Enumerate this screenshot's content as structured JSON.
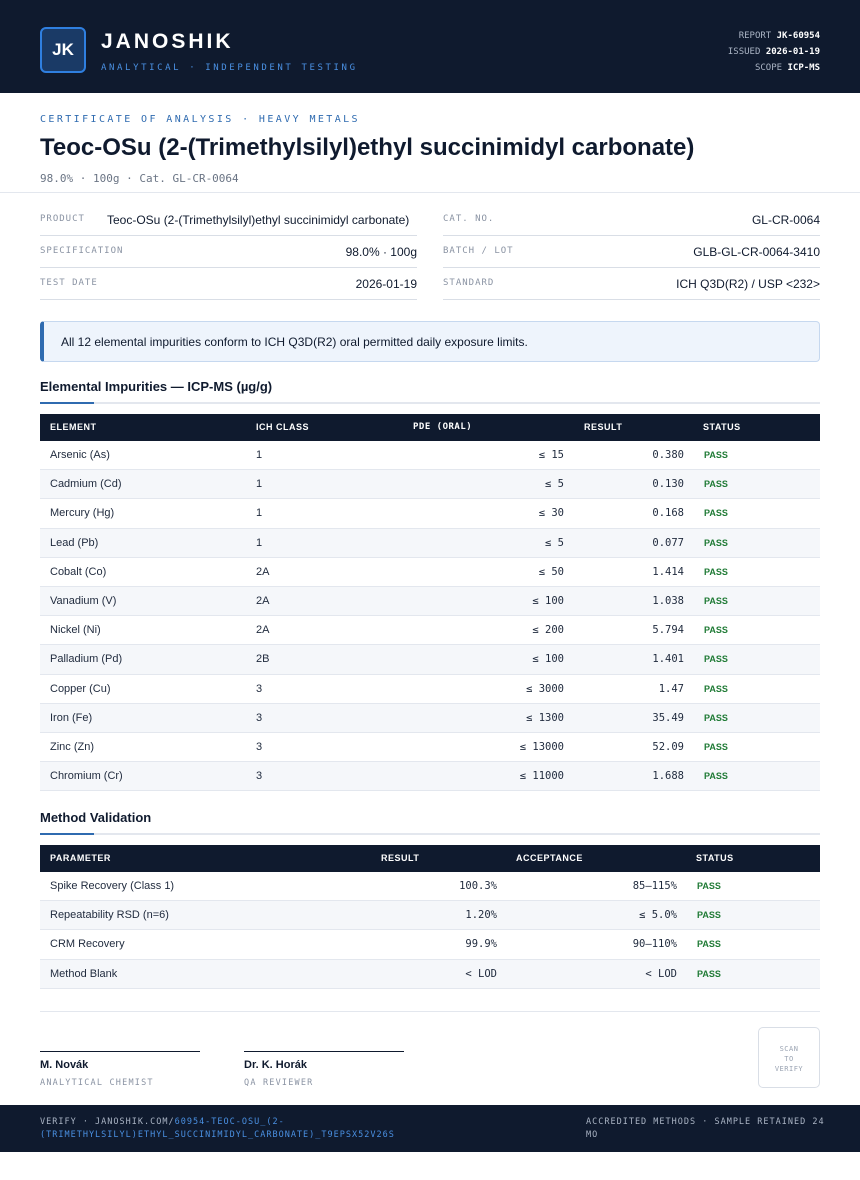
{
  "header": {
    "logo": "JK",
    "brand": "JANOSHIK",
    "tagline": "ANALYTICAL · INDEPENDENT TESTING",
    "report_label": "REPORT",
    "report_value": "JK-60954",
    "issued_label": "ISSUED",
    "issued_value": "2026-01-19",
    "scope_label": "SCOPE",
    "scope_value": "ICP-MS"
  },
  "title_block": {
    "kicker": "CERTIFICATE OF ANALYSIS · HEAVY METALS",
    "title": "Teoc-OSu (2-(Trimethylsilyl)ethyl succinimidyl carbonate)",
    "subline": "98.0% · 100g  ·  Cat. GL-CR-0064"
  },
  "info": {
    "product_label": "PRODUCT",
    "product_value": "Teoc-OSu (2-(Trimethylsilyl)ethyl succinimidyl carbonate)",
    "catno_label": "CAT. NO.",
    "catno_value": "GL-CR-0064",
    "spec_label": "SPECIFICATION",
    "spec_value": "98.0% · 100g",
    "batch_label": "BATCH / LOT",
    "batch_value": "GLB-GL-CR-0064-3410",
    "date_label": "TEST DATE",
    "date_value": "2026-01-19",
    "standard_label": "STANDARD",
    "standard_value": "ICH Q3D(R2) / USP <232>"
  },
  "notice": "All 12 elemental impurities conform to ICH Q3D(R2) oral permitted daily exposure limits.",
  "impurities": {
    "heading": "Elemental Impurities — ICP-MS (µg/g)",
    "columns": [
      "ELEMENT",
      "ICH CLASS",
      "PDE (ORAL)",
      "RESULT",
      "STATUS"
    ],
    "rows": [
      {
        "element": "Arsenic (As)",
        "class": "1",
        "pde": "≤ 15",
        "result": "0.380",
        "status": "PASS"
      },
      {
        "element": "Cadmium (Cd)",
        "class": "1",
        "pde": "≤ 5",
        "result": "0.130",
        "status": "PASS"
      },
      {
        "element": "Mercury (Hg)",
        "class": "1",
        "pde": "≤ 30",
        "result": "0.168",
        "status": "PASS"
      },
      {
        "element": "Lead (Pb)",
        "class": "1",
        "pde": "≤ 5",
        "result": "0.077",
        "status": "PASS"
      },
      {
        "element": "Cobalt (Co)",
        "class": "2A",
        "pde": "≤ 50",
        "result": "1.414",
        "status": "PASS"
      },
      {
        "element": "Vanadium (V)",
        "class": "2A",
        "pde": "≤ 100",
        "result": "1.038",
        "status": "PASS"
      },
      {
        "element": "Nickel (Ni)",
        "class": "2A",
        "pde": "≤ 200",
        "result": "5.794",
        "status": "PASS"
      },
      {
        "element": "Palladium (Pd)",
        "class": "2B",
        "pde": "≤ 100",
        "result": "1.401",
        "status": "PASS"
      },
      {
        "element": "Copper (Cu)",
        "class": "3",
        "pde": "≤ 3000",
        "result": "1.47",
        "status": "PASS"
      },
      {
        "element": "Iron (Fe)",
        "class": "3",
        "pde": "≤ 1300",
        "result": "35.49",
        "status": "PASS"
      },
      {
        "element": "Zinc (Zn)",
        "class": "3",
        "pde": "≤ 13000",
        "result": "52.09",
        "status": "PASS"
      },
      {
        "element": "Chromium (Cr)",
        "class": "3",
        "pde": "≤ 11000",
        "result": "1.688",
        "status": "PASS"
      }
    ]
  },
  "validation": {
    "heading": "Method Validation",
    "columns": [
      "PARAMETER",
      "RESULT",
      "ACCEPTANCE",
      "STATUS"
    ],
    "rows": [
      {
        "parameter": "Spike Recovery (Class 1)",
        "result": "100.3%",
        "acceptance": "85–115%",
        "status": "PASS"
      },
      {
        "parameter": "Repeatability RSD (n=6)",
        "result": "1.20%",
        "acceptance": "≤ 5.0%",
        "status": "PASS"
      },
      {
        "parameter": "CRM Recovery",
        "result": "99.9%",
        "acceptance": "90–110%",
        "status": "PASS"
      },
      {
        "parameter": "Method Blank",
        "result": "< LOD",
        "acceptance": "< LOD",
        "status": "PASS"
      }
    ]
  },
  "signatures": [
    {
      "name": "M. Novák",
      "role": "ANALYTICAL CHEMIST"
    },
    {
      "name": "Dr. K. Horák",
      "role": "QA REVIEWER"
    }
  ],
  "qr_text": [
    "SCAN",
    "TO",
    "VERIFY"
  ],
  "footer": {
    "verify_prefix": "VERIFY · JANOSHIK.COM/",
    "verify_link": "60954-TEOC-OSU_(2-(TRIMETHYLSILYL)ETHYL_SUCCINIMIDYL_CARBONATE)_T9EPSX52V26S",
    "right_text": "ACCREDITED METHODS · SAMPLE RETAINED 24 MO"
  },
  "colors": {
    "navy": "#0f1a2e",
    "accent_blue": "#2f6bb0",
    "pass_green": "#1e7a34",
    "notice_bg": "#eef4fc"
  }
}
